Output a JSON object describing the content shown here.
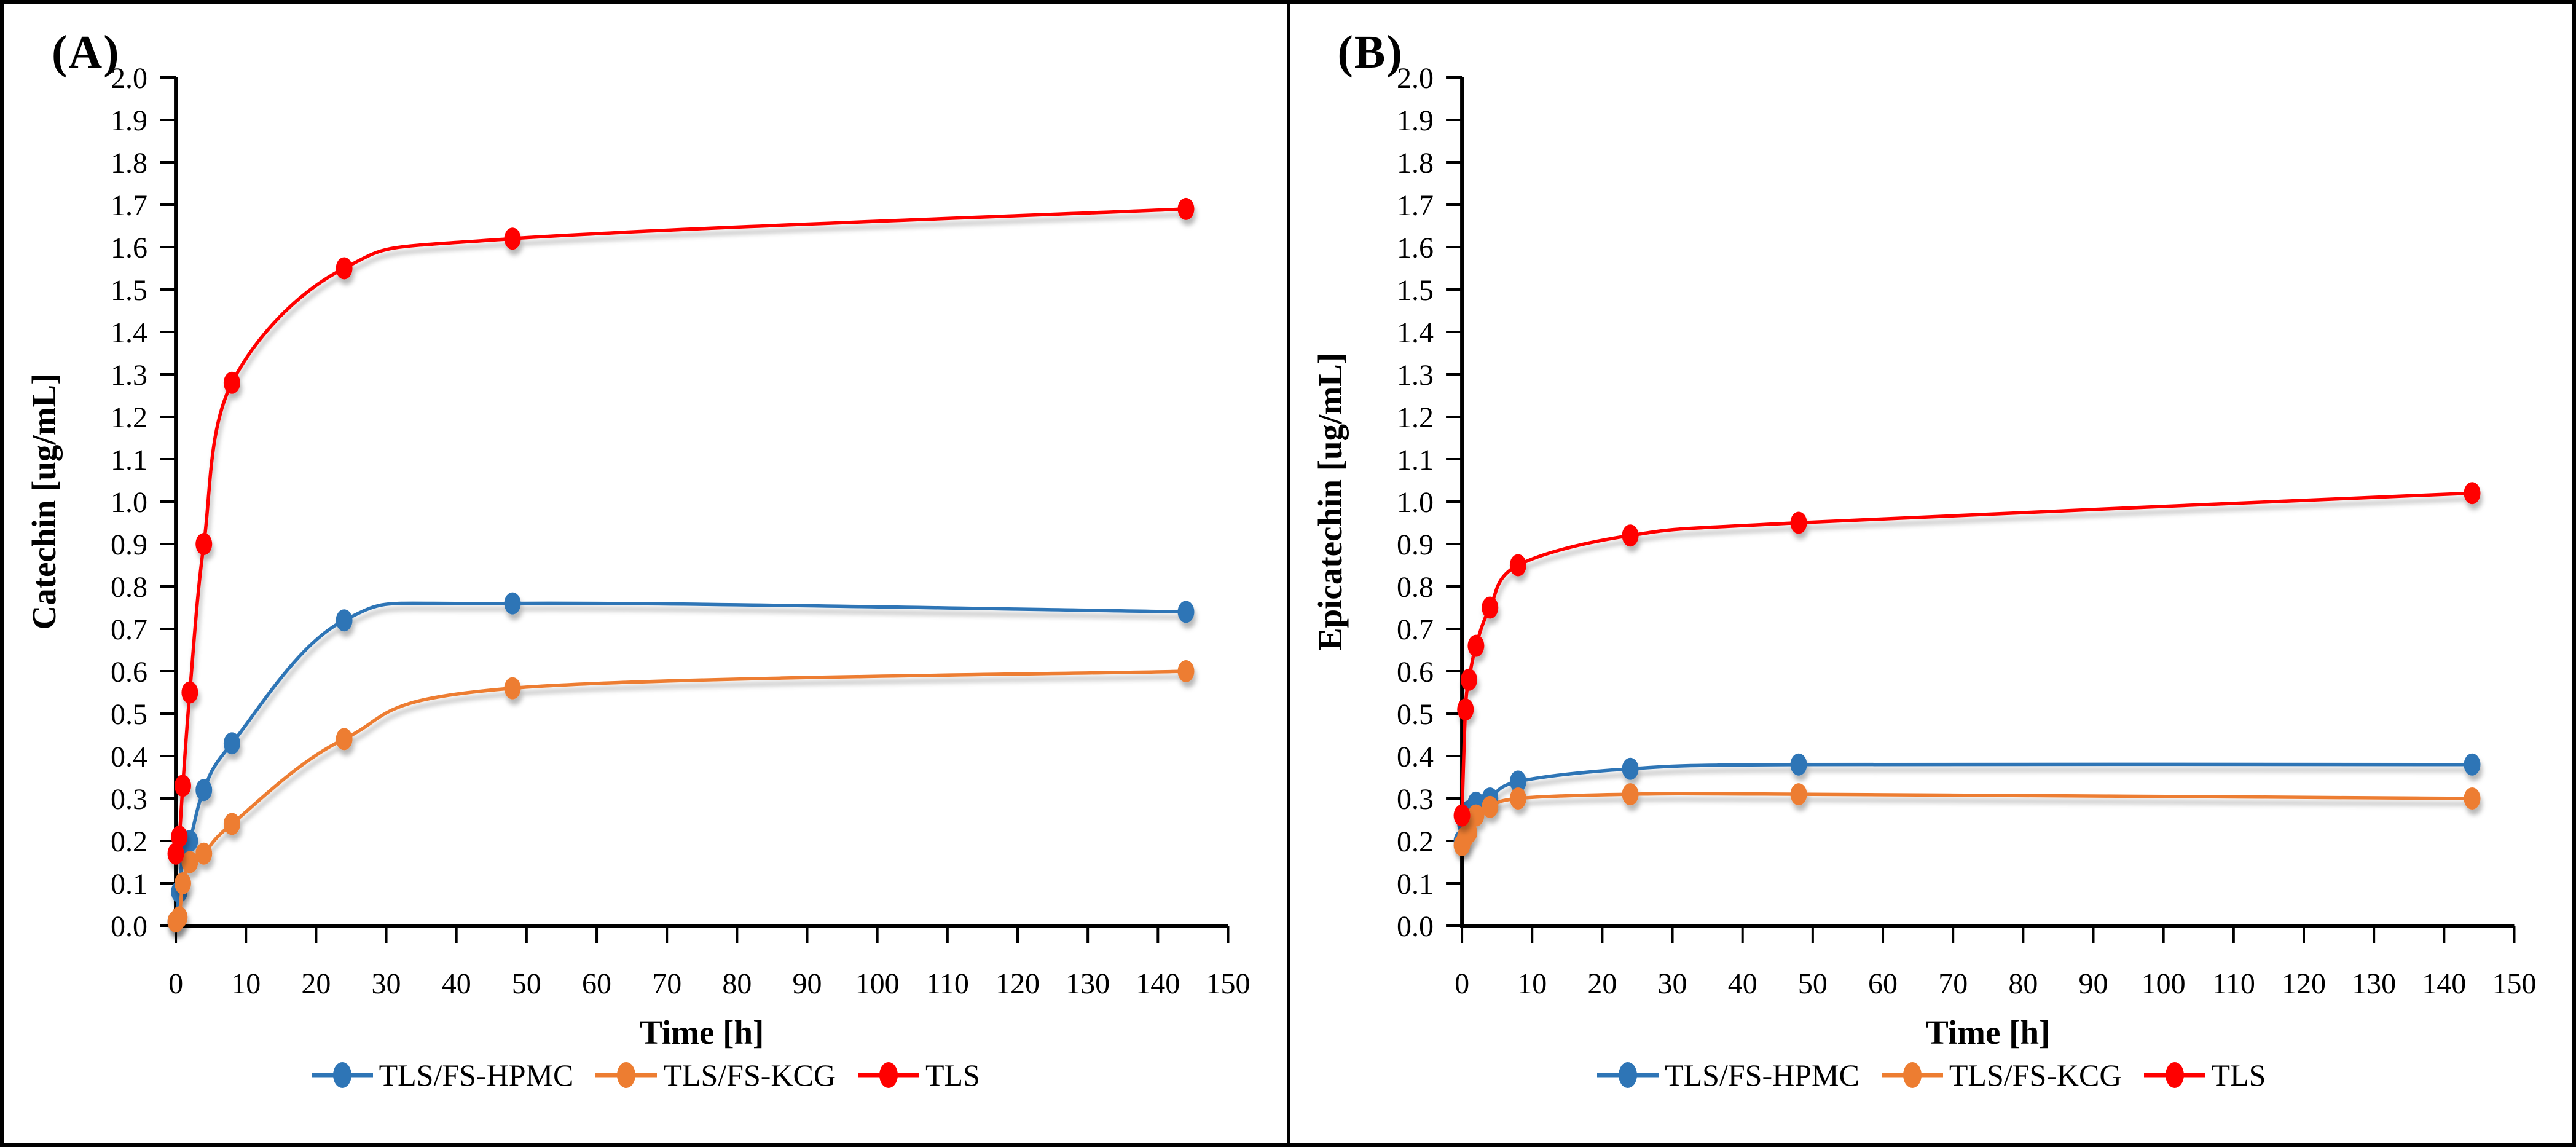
{
  "figure": {
    "panels": [
      {
        "label": "(A)"
      },
      {
        "label": "(B)"
      }
    ]
  },
  "colors": {
    "hpmc_blue": "#2E75B6",
    "kcg_orange": "#ED7D31",
    "tls_red": "#FF0000",
    "axis_black": "#000000",
    "background": "#FFFFFF"
  },
  "chart_data": [
    {
      "type": "line",
      "title": "(A)",
      "xlabel": "Time [h]",
      "ylabel": "Catechin [ug/mL]",
      "xlim": [
        0,
        150
      ],
      "ylim": [
        0.0,
        2.0
      ],
      "xtick_step": 10,
      "ytick_step": 0.1,
      "grid": false,
      "legend_position": "bottom",
      "x": [
        0,
        0.5,
        1,
        2,
        4,
        8,
        24,
        48,
        144
      ],
      "series": [
        {
          "name": "TLS/FS-HPMC",
          "color": "#2E75B6",
          "values": [
            0.01,
            0.08,
            0.17,
            0.2,
            0.32,
            0.43,
            0.72,
            0.76,
            0.74
          ]
        },
        {
          "name": "TLS/FS-KCG",
          "color": "#ED7D31",
          "values": [
            0.01,
            0.02,
            0.1,
            0.15,
            0.17,
            0.24,
            0.44,
            0.56,
            0.6
          ]
        },
        {
          "name": "TLS",
          "color": "#FF0000",
          "values": [
            0.17,
            0.21,
            0.33,
            0.55,
            0.9,
            1.28,
            1.55,
            1.62,
            1.69
          ]
        }
      ]
    },
    {
      "type": "line",
      "title": "(B)",
      "xlabel": "Time [h]",
      "ylabel": "Epicatechin [ug/mL]",
      "xlim": [
        0,
        150
      ],
      "ylim": [
        0.0,
        2.0
      ],
      "xtick_step": 10,
      "ytick_step": 0.1,
      "grid": false,
      "legend_position": "bottom",
      "x": [
        0,
        0.5,
        1,
        2,
        4,
        8,
        24,
        48,
        144
      ],
      "series": [
        {
          "name": "TLS/FS-HPMC",
          "color": "#2E75B6",
          "values": [
            0.2,
            0.24,
            0.27,
            0.29,
            0.3,
            0.34,
            0.37,
            0.38,
            0.38
          ]
        },
        {
          "name": "TLS/FS-KCG",
          "color": "#ED7D31",
          "values": [
            0.19,
            0.21,
            0.22,
            0.26,
            0.28,
            0.3,
            0.31,
            0.31,
            0.3
          ]
        },
        {
          "name": "TLS",
          "color": "#FF0000",
          "values": [
            0.26,
            0.51,
            0.58,
            0.66,
            0.75,
            0.85,
            0.92,
            0.95,
            1.02
          ]
        }
      ]
    }
  ]
}
